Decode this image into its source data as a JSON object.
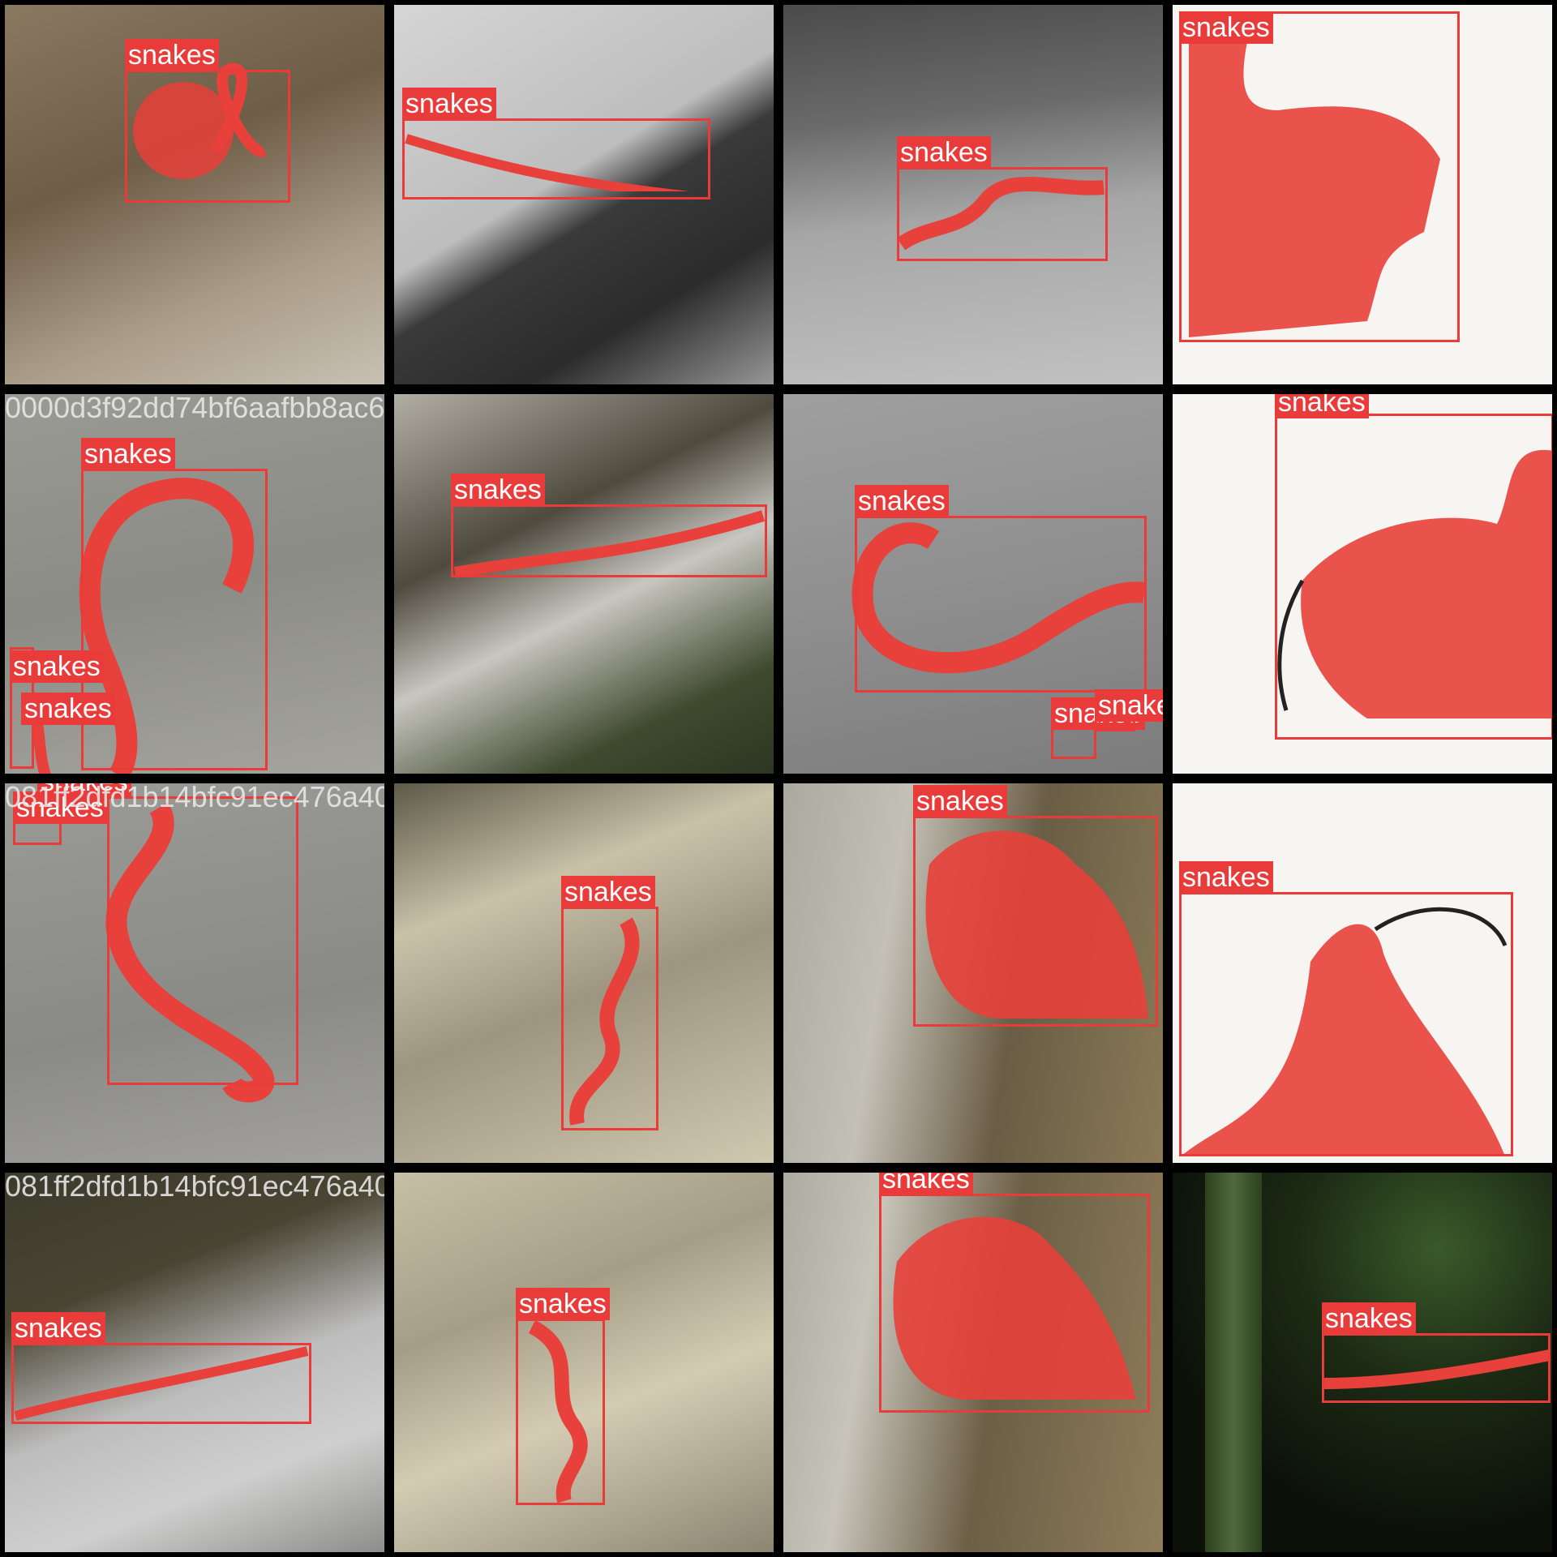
{
  "class_label": "snakes",
  "colors": {
    "box": "#ea3b3b",
    "mask": "#e8403a",
    "separator": "#7b7b7b"
  },
  "filenames": {
    "row1": "0000d3f92dd74bf6aafbb8ac6e6...6288e47958cb387708e2d080b704a779f4a4ffa07a8...",
    "row2": "081ff2dfd1b14bfc91ec476a40821f8256289e47958cb387708...c91ec476a40728ca52...043d382fb811b",
    "row3": "081ff2dfd1b14bfc91ec476a4082feab...b704a779f4a4ffa07a...1a9c929083de6a8f1b513_jpg.043d382fb811b"
  }
}
